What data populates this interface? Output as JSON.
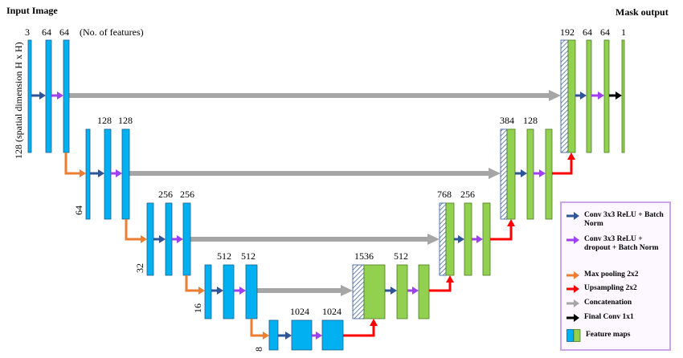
{
  "header": {
    "input_image": "Input Image",
    "mask_output": "Mask output"
  },
  "labels": {
    "features_note": "(No. of features)",
    "spatial_note": "128 (spatial dimension H x H)",
    "level1": {
      "in_3": "3",
      "a": "64",
      "b": "64"
    },
    "level2": {
      "spatial": "64",
      "a": "128",
      "b": "128"
    },
    "level3": {
      "spatial": "32",
      "a": "256",
      "b": "256"
    },
    "level4": {
      "spatial": "16",
      "a": "512",
      "b": "512"
    },
    "level5": {
      "spatial": "8",
      "a": "1024",
      "b": "1024"
    },
    "dec4": {
      "concat": "1536",
      "a": "512"
    },
    "dec3": {
      "concat": "768",
      "a": "256"
    },
    "dec2": {
      "concat": "384",
      "a": "128"
    },
    "dec1": {
      "concat": "192",
      "a": "64",
      "b": "64",
      "out": "1"
    }
  },
  "legend": {
    "items": [
      {
        "label": "Conv 3x3 ReLU + Batch Norm",
        "icon": "blue-arrow"
      },
      {
        "label": "Conv 3x3 ReLU + dropout + Batch Norm",
        "icon": "purple-arrow"
      },
      {
        "label": "Max pooling 2x2",
        "icon": "orange-arrow"
      },
      {
        "label": "Upsampling 2x2",
        "icon": "red-arrow"
      },
      {
        "label": "Concatenation",
        "icon": "gray-arrow"
      },
      {
        "label": "Final Conv 1x1",
        "icon": "black-arrow"
      },
      {
        "label": "Feature maps",
        "icon": "feature-maps"
      }
    ]
  },
  "colors": {
    "encoder_map": "#00b0f0",
    "decoder_map": "#92d050",
    "conv_arrow": "#2e5597",
    "dropout_arrow": "#a040f0",
    "pool_arrow": "#ed7d31",
    "upsample_arrow": "#ff0000",
    "concat_arrow": "#a6a6a6",
    "final_arrow": "#000000",
    "legend_border": "#c9a4e6"
  }
}
